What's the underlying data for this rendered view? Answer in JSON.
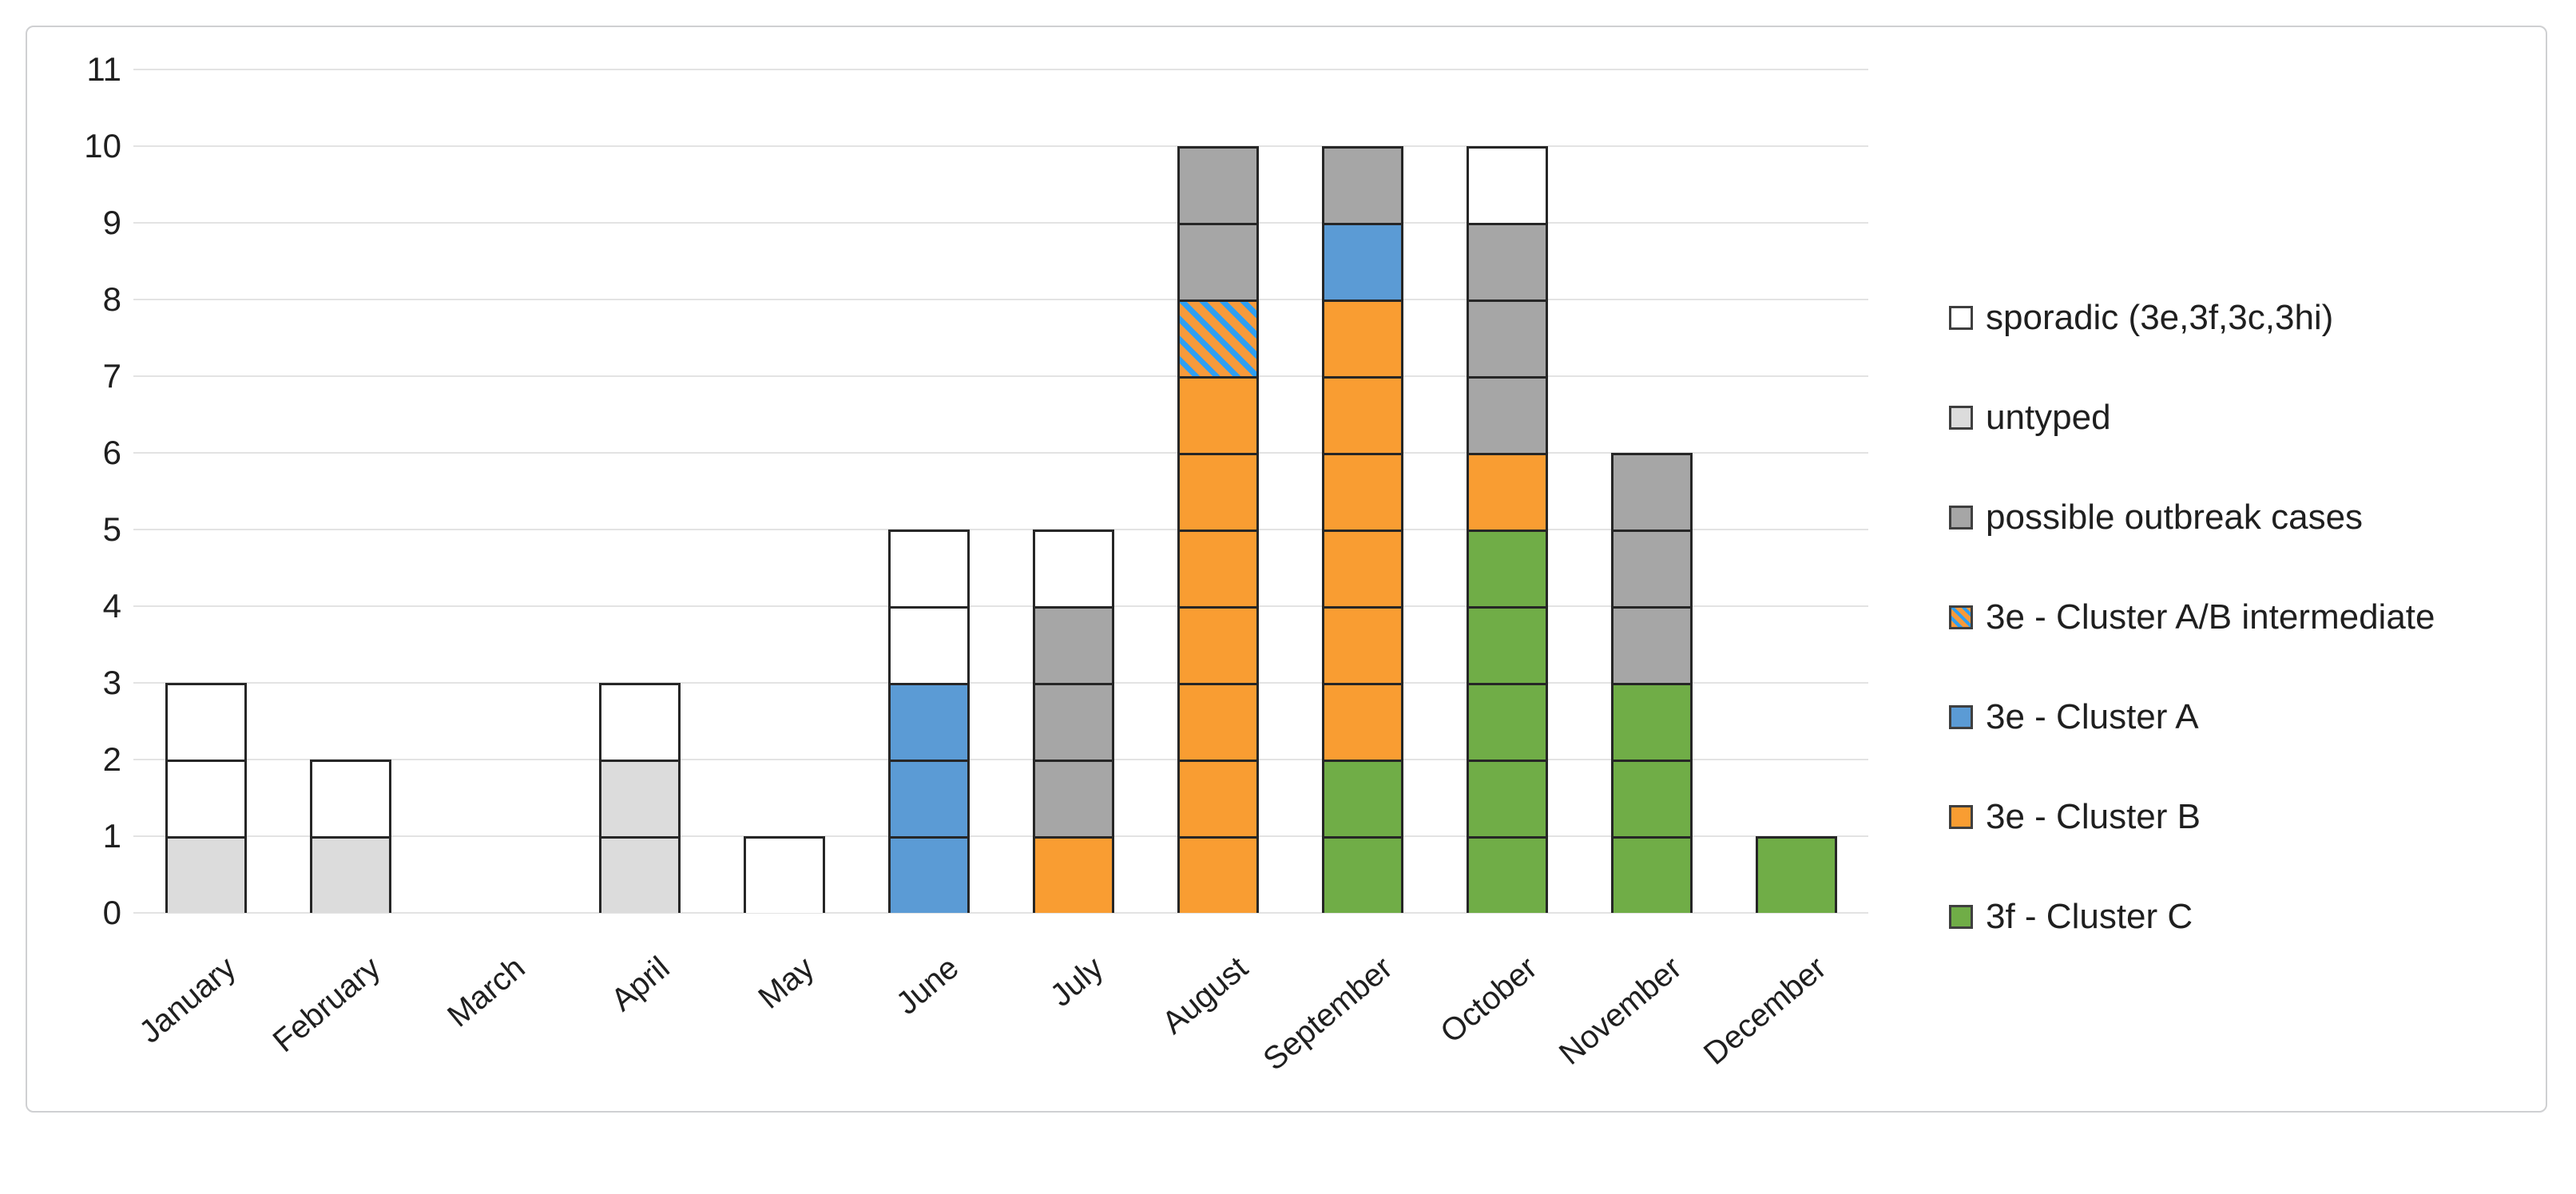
{
  "figure": {
    "background": "#ffffff",
    "border_color": "#cfd0d2"
  },
  "chart_data": {
    "type": "bar",
    "stacked": true,
    "title": "",
    "xlabel": "",
    "ylabel": "",
    "categories": [
      "January",
      "February",
      "March",
      "April",
      "May",
      "June",
      "July",
      "August",
      "September",
      "October",
      "November",
      "December"
    ],
    "series": [
      {
        "key": "sporadic",
        "name": "sporadic (3e,3f,3c,3hi)",
        "color": "#FFFFFF",
        "values": [
          2,
          1,
          0,
          1,
          1,
          2,
          1,
          0,
          0,
          1,
          0,
          0
        ]
      },
      {
        "key": "untyped",
        "name": "untyped",
        "color": "#DCDCDC",
        "values": [
          1,
          1,
          0,
          2,
          0,
          0,
          0,
          0,
          0,
          0,
          0,
          0
        ]
      },
      {
        "key": "outbreak",
        "name": "possible outbreak cases",
        "color": "#A6A6A6",
        "values": [
          0,
          0,
          0,
          0,
          0,
          0,
          3,
          2,
          1,
          3,
          3,
          0
        ]
      },
      {
        "key": "intermediate",
        "name": "3e - Cluster A/B intermediate",
        "color": "#F79A3B",
        "stripe_color": "#2E9FF2",
        "values": [
          0,
          0,
          0,
          0,
          0,
          0,
          0,
          1,
          0,
          0,
          0,
          0
        ]
      },
      {
        "key": "clusterA",
        "name": "3e - Cluster A",
        "color": "#5B9BD5",
        "values": [
          0,
          0,
          0,
          0,
          0,
          3,
          0,
          0,
          1,
          0,
          0,
          0
        ]
      },
      {
        "key": "clusterB",
        "name": "3e - Cluster B",
        "color": "#F99D32",
        "values": [
          0,
          0,
          0,
          0,
          0,
          0,
          1,
          7,
          6,
          1,
          0,
          0
        ]
      },
      {
        "key": "clusterC",
        "name": "3f - Cluster C",
        "color": "#70AD47",
        "values": [
          0,
          0,
          0,
          0,
          0,
          0,
          0,
          0,
          2,
          5,
          3,
          1
        ]
      }
    ],
    "stack_order_bottom_to_top": [
      "clusterC",
      "clusterB",
      "clusterA",
      "intermediate",
      "outbreak",
      "untyped",
      "sporadic"
    ],
    "monthly_totals": [
      3,
      2,
      0,
      3,
      1,
      5,
      5,
      10,
      10,
      10,
      6,
      1
    ],
    "y_ticks": [
      "0",
      "1",
      "2",
      "3",
      "4",
      "5",
      "6",
      "7",
      "8",
      "9",
      "10",
      "11"
    ],
    "ylim": [
      0,
      11
    ],
    "grid": "horizontal",
    "legend_position": "right"
  },
  "style_colors": {
    "gridline": "#e3e3e3",
    "block_border": "#262626",
    "axis_text": "#1f1f1f",
    "legend_swatch_border": "#3f3f3f"
  }
}
